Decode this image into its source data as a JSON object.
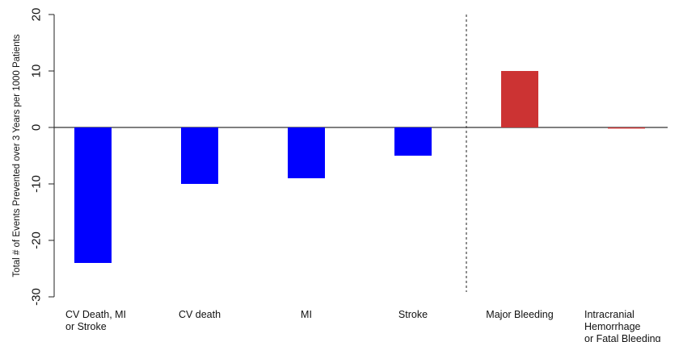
{
  "chart_data": {
    "type": "bar",
    "title": "",
    "ylabel": "Total # of Events Prevented over 3 Years per 1000 Patients",
    "xlabel": "",
    "ylim": [
      -30,
      20
    ],
    "yticks": [
      20,
      10,
      0,
      -10,
      -20,
      -30
    ],
    "categories": [
      [
        "CV Death, MI",
        "or Stroke"
      ],
      [
        "CV death"
      ],
      [
        "MI"
      ],
      [
        "Stroke"
      ],
      [
        "Major Bleeding"
      ],
      [
        "Intracranial",
        "Hemorrhage",
        "or Fatal Bleeding"
      ]
    ],
    "values": [
      -24,
      -10,
      -9,
      -5,
      10,
      -0.2
    ],
    "colors": [
      "#0000ff",
      "#0000ff",
      "#0000ff",
      "#0000ff",
      "#cc3333",
      "#cc3333"
    ],
    "divider_after_category": 4,
    "grid": false,
    "legend": "none"
  }
}
